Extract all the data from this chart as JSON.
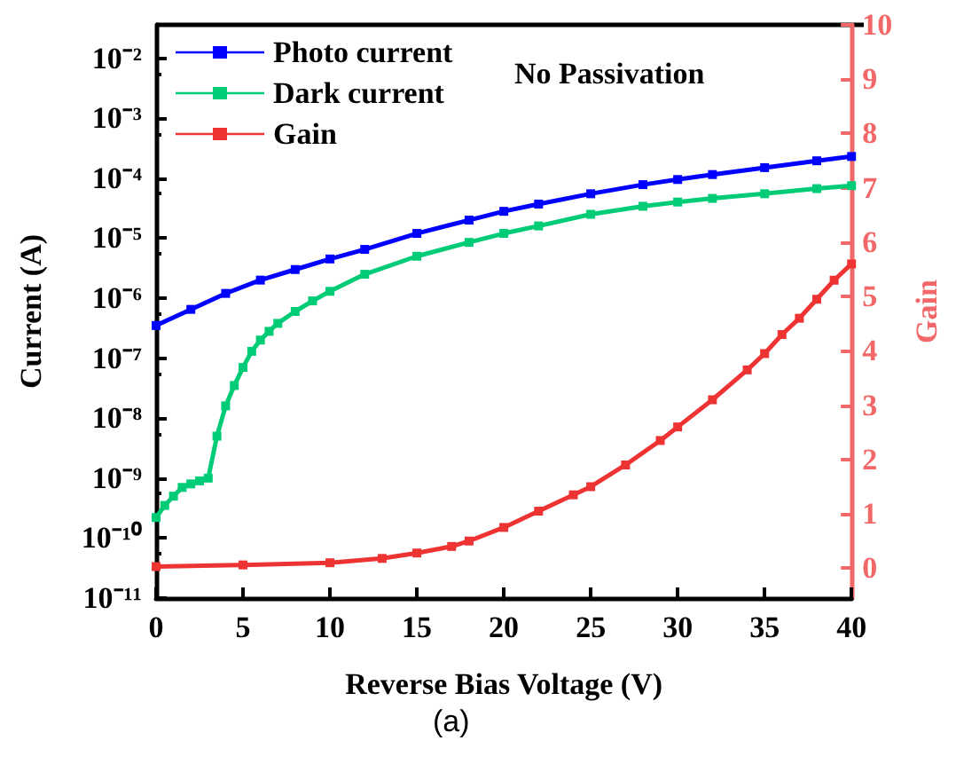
{
  "chart_data": {
    "type": "line",
    "xlabel": "Reverse Bias Voltage (V)",
    "ylabel": "Current (A)",
    "y2label": "Gain",
    "annotations": [
      "No Passivation",
      "(a)"
    ],
    "xlim": [
      0,
      40
    ],
    "xticks": [
      0,
      5,
      10,
      15,
      20,
      25,
      30,
      35,
      40
    ],
    "log": "y",
    "ylim": [
      1e-11,
      0.036
    ],
    "yticks": [
      {
        "value": 1e-11,
        "label": "10⁻¹¹"
      },
      {
        "value": 1e-10,
        "label": "10⁻¹⁰"
      },
      {
        "value": 1e-09,
        "label": "10⁻⁹"
      },
      {
        "value": 1e-08,
        "label": "10⁻⁸"
      },
      {
        "value": 1e-07,
        "label": "10⁻⁷"
      },
      {
        "value": 1e-06,
        "label": "10⁻⁶"
      },
      {
        "value": 1e-05,
        "label": "10⁻⁵"
      },
      {
        "value": 0.0001,
        "label": "10⁻⁴"
      },
      {
        "value": 0.001,
        "label": "10⁻³"
      },
      {
        "value": 0.01,
        "label": "10⁻²"
      }
    ],
    "y2lim": [
      -0.55,
      10
    ],
    "y2ticks": [
      0,
      1,
      2,
      3,
      4,
      5,
      6,
      7,
      8,
      9,
      10
    ],
    "grid": false,
    "legend": "top left",
    "marker": "square",
    "line_style": "solid",
    "series": [
      {
        "name": "Photo current",
        "color": "#0000ff",
        "x": [
          0,
          2,
          4,
          6,
          8,
          10,
          12,
          15,
          18,
          20,
          22,
          25,
          28,
          30,
          32,
          35,
          38,
          40
        ],
        "values": [
          3.5e-07,
          6.5e-07,
          1.2e-06,
          2e-06,
          3e-06,
          4.5e-06,
          6.5e-06,
          1.2e-05,
          2e-05,
          2.8e-05,
          3.7e-05,
          5.5e-05,
          7.8e-05,
          9.5e-05,
          0.000115,
          0.00015,
          0.000195,
          0.00023
        ]
      },
      {
        "name": "Dark current",
        "color": "#00cc77",
        "x": [
          0,
          0.5,
          1,
          1.5,
          2,
          2.5,
          3,
          3.5,
          4,
          4.5,
          5,
          5.5,
          6,
          6.5,
          7,
          8,
          9,
          10,
          12,
          15,
          18,
          20,
          22,
          25,
          28,
          30,
          32,
          35,
          38,
          40
        ],
        "values": [
          2.2e-10,
          3.5e-10,
          5e-10,
          7e-10,
          8e-10,
          9e-10,
          1e-09,
          5e-09,
          1.6e-08,
          3.5e-08,
          7e-08,
          1.3e-07,
          2e-07,
          2.8e-07,
          3.8e-07,
          6e-07,
          9e-07,
          1.3e-06,
          2.5e-06,
          5e-06,
          8.5e-06,
          1.2e-05,
          1.6e-05,
          2.5e-05,
          3.4e-05,
          4e-05,
          4.6e-05,
          5.5e-05,
          6.7e-05,
          7.5e-05
        ]
      },
      {
        "name": "Gain",
        "color": "#ee3333",
        "axis": "y2",
        "x": [
          0,
          5,
          10,
          13,
          15,
          17,
          18,
          20,
          22,
          24,
          25,
          27,
          29,
          30,
          32,
          34,
          35,
          36,
          37,
          38,
          39,
          40
        ],
        "values": [
          0.03,
          0.06,
          0.1,
          0.18,
          0.28,
          0.4,
          0.5,
          0.75,
          1.05,
          1.35,
          1.5,
          1.9,
          2.35,
          2.6,
          3.1,
          3.65,
          3.95,
          4.3,
          4.6,
          4.95,
          5.3,
          5.6
        ]
      }
    ]
  }
}
